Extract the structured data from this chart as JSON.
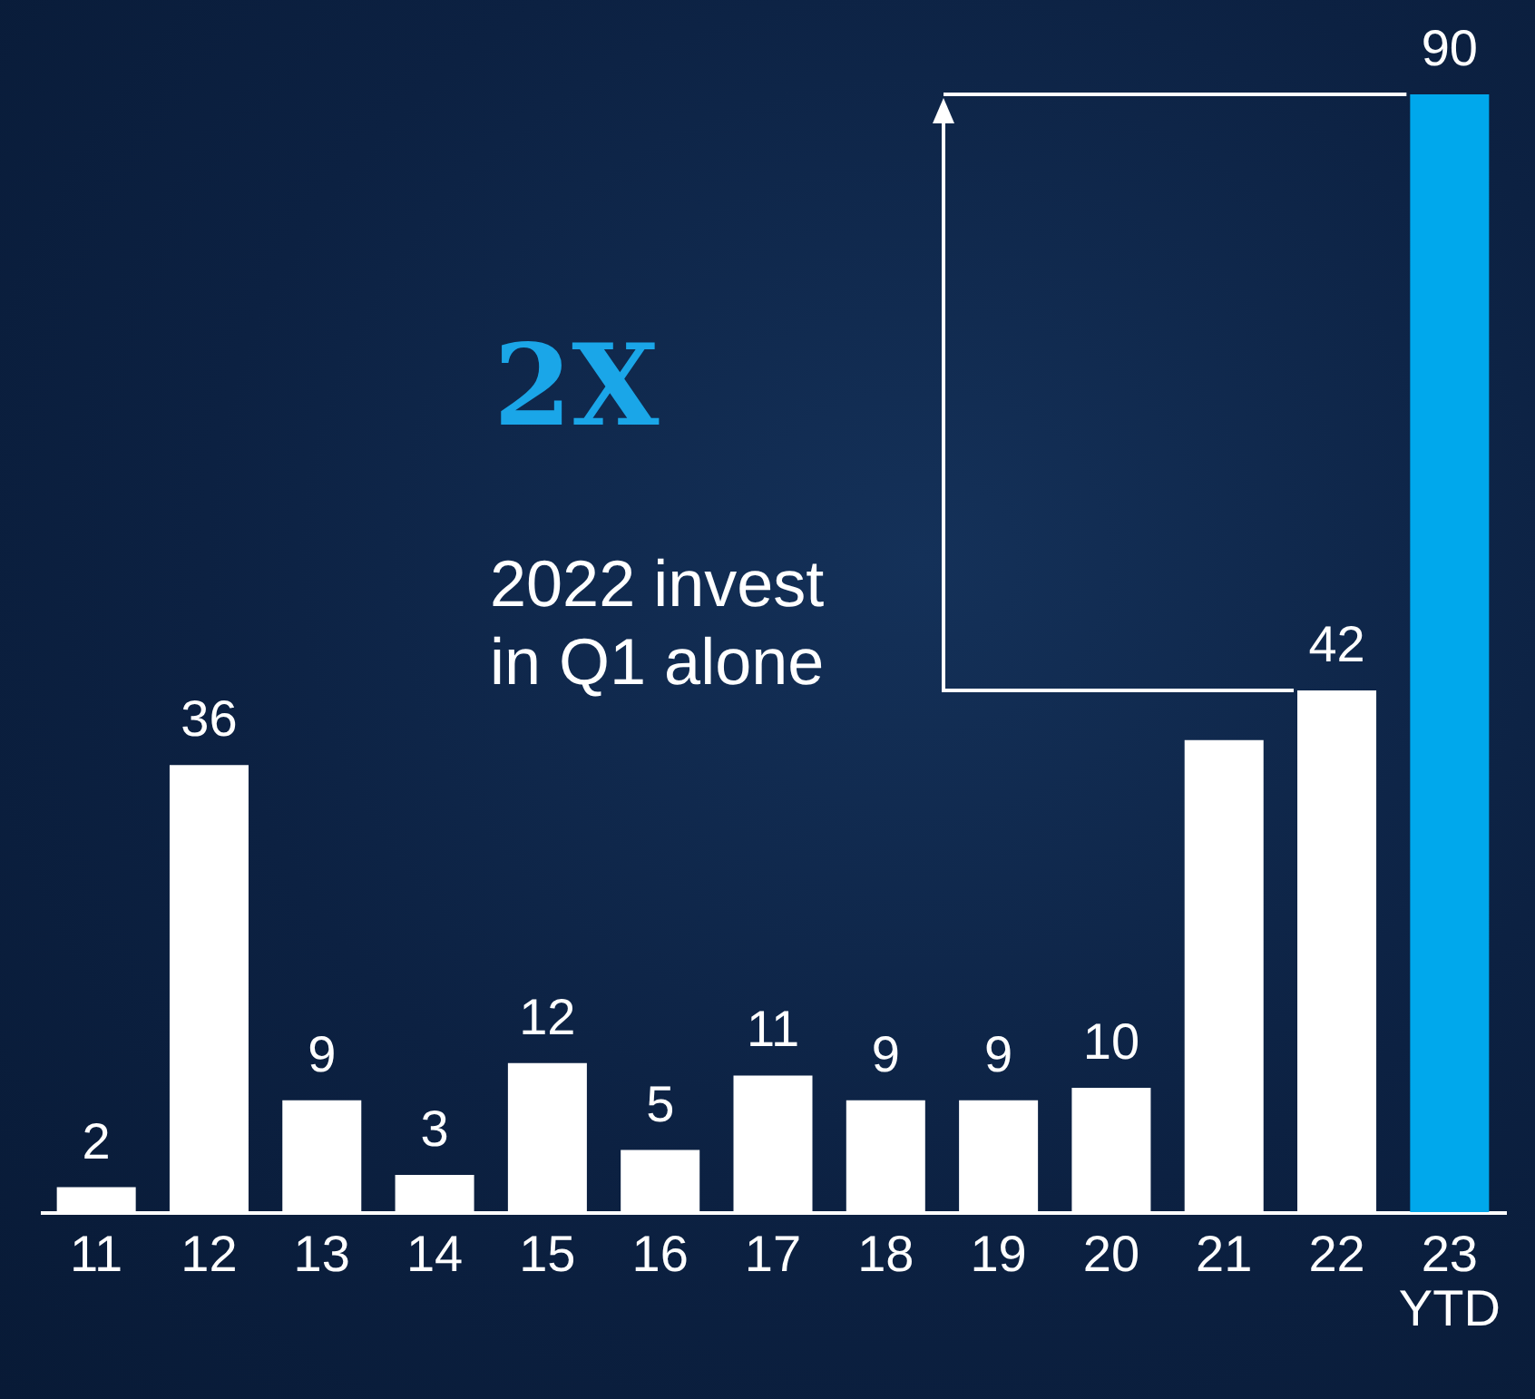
{
  "chart_data": {
    "type": "bar",
    "categories": [
      "11",
      "12",
      "13",
      "14",
      "15",
      "16",
      "17",
      "18",
      "19",
      "20",
      "21",
      "22",
      "23\nYTD"
    ],
    "values": [
      2,
      36,
      9,
      3,
      12,
      5,
      11,
      9,
      9,
      10,
      38,
      42,
      90
    ],
    "colors": [
      "#ffffff",
      "#ffffff",
      "#ffffff",
      "#ffffff",
      "#ffffff",
      "#ffffff",
      "#ffffff",
      "#ffffff",
      "#ffffff",
      "#ffffff",
      "#ffffff",
      "#ffffff",
      "#00a8ec"
    ],
    "value_labels": [
      "2",
      "36",
      "9",
      "3",
      "12",
      "5",
      "11",
      "9",
      "9",
      "10",
      null,
      "42",
      "90"
    ],
    "annotations": [
      "2X",
      "2022 invest\nin Q1 alone"
    ]
  }
}
